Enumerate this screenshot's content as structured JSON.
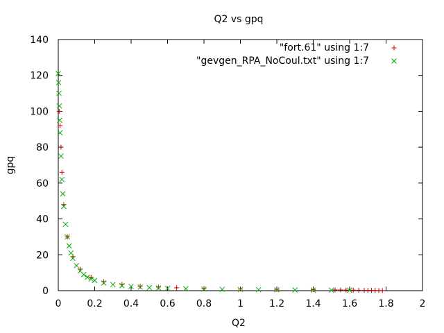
{
  "chart_data": {
    "type": "scatter",
    "title": "Q2 vs gpq",
    "xlabel": "Q2",
    "ylabel": "gpq",
    "xlim": [
      0,
      2
    ],
    "ylim": [
      0,
      140
    ],
    "x_ticks": [
      "0",
      "0.2",
      "0.4",
      "0.6",
      "0.8",
      "1",
      "1.2",
      "1.4",
      "1.6",
      "1.8",
      "2"
    ],
    "y_ticks": [
      "0",
      "20",
      "40",
      "60",
      "80",
      "100",
      "120",
      "140"
    ],
    "x_tick_values": [
      0,
      0.2,
      0.4,
      0.6,
      0.8,
      1.0,
      1.2,
      1.4,
      1.6,
      1.8,
      2.0
    ],
    "y_tick_values": [
      0,
      20,
      40,
      60,
      80,
      100,
      120,
      140
    ],
    "grid": false,
    "legend_position": "top-right",
    "series": [
      {
        "name": "\"fort.61\" using 1:7",
        "marker": "plus",
        "color": "#cc0000",
        "x": [
          0.005,
          0.01,
          0.015,
          0.02,
          0.03,
          0.05,
          0.08,
          0.12,
          0.18,
          0.25,
          0.35,
          0.45,
          0.55,
          0.65,
          0.8,
          1.0,
          1.2,
          1.4,
          1.52,
          1.55,
          1.58,
          1.62,
          1.65,
          1.68,
          1.7,
          1.72,
          1.74,
          1.76,
          1.78
        ],
        "y": [
          100,
          92,
          80,
          66,
          48,
          30,
          19,
          12,
          7.5,
          5,
          3.5,
          2.5,
          2,
          1.6,
          1.2,
          0.9,
          0.7,
          0.55,
          0.45,
          0.4,
          0.35,
          0.3,
          0.25,
          0.2,
          0.18,
          0.15,
          0.12,
          0.1,
          0.08
        ]
      },
      {
        "name": "\"gevgen_RPA_NoCoul.txt\" using 1:7",
        "marker": "cross",
        "color": "#00aa00",
        "x": [
          0.0,
          0.002,
          0.004,
          0.006,
          0.008,
          0.01,
          0.015,
          0.02,
          0.025,
          0.03,
          0.04,
          0.05,
          0.06,
          0.07,
          0.08,
          0.1,
          0.12,
          0.14,
          0.16,
          0.18,
          0.2,
          0.25,
          0.3,
          0.35,
          0.4,
          0.45,
          0.5,
          0.55,
          0.6,
          0.7,
          0.8,
          0.9,
          1.0,
          1.1,
          1.2,
          1.3,
          1.4,
          1.5,
          1.6
        ],
        "y": [
          121,
          116,
          110,
          103,
          95,
          88,
          75,
          62,
          54,
          47,
          37,
          30,
          25,
          21,
          18,
          14,
          11,
          9,
          7.5,
          6.5,
          5.7,
          4.3,
          3.4,
          2.8,
          2.4,
          2.0,
          1.7,
          1.5,
          1.35,
          1.1,
          0.9,
          0.75,
          0.65,
          0.55,
          0.48,
          0.4,
          0.35,
          0.3,
          0.25
        ]
      }
    ]
  }
}
